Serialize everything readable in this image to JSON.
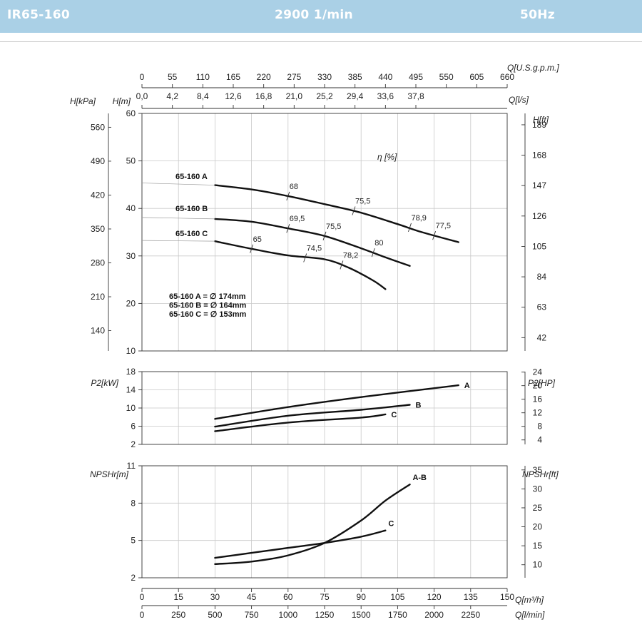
{
  "header": {
    "model": "IR65-160",
    "speed": "2900 1/min",
    "frequency": "50Hz"
  },
  "chart_data": [
    {
      "type": "line",
      "panel": "head",
      "x_unit": "Q[m³/h]",
      "xlim": [
        0,
        150
      ],
      "ylim": [
        10,
        60
      ],
      "y_ticks": [
        "10",
        "20",
        "30",
        "40",
        "50",
        "60"
      ],
      "ylabel": "H[m]",
      "ylabel_kpa": "H[kPa]",
      "kpa_ticks": [
        "140",
        "210",
        "280",
        "350",
        "420",
        "490",
        "560"
      ],
      "ylabel_ft": "H[ft]",
      "ft_ticks": [
        "42",
        "63",
        "84",
        "105",
        "126",
        "147",
        "168",
        "189"
      ],
      "top_axis_usgpm": {
        "label": "Q[U.S.g.p.m.]",
        "ticks": [
          "0",
          "55",
          "110",
          "165",
          "220",
          "275",
          "330",
          "385",
          "440",
          "495",
          "550",
          "605",
          "660"
        ]
      },
      "top_axis_ls": {
        "label": "Q[l/s]",
        "ticks": [
          "0,0",
          "4,2",
          "8,4",
          "12,6",
          "16,8",
          "21,0",
          "25,2",
          "29,4",
          "33,6",
          "37,8"
        ]
      },
      "efficiency_label": "η [%]",
      "series": [
        {
          "name": "65-160 A",
          "x": [
            30,
            45,
            60,
            75,
            90,
            105,
            115,
            130
          ],
          "y": [
            44.9,
            44.0,
            42.6,
            40.9,
            39.1,
            36.7,
            35.0,
            32.9
          ]
        },
        {
          "name": "65-160 B",
          "x": [
            30,
            45,
            60,
            75,
            90,
            100,
            110
          ],
          "y": [
            37.8,
            37.2,
            35.8,
            34.2,
            31.6,
            29.7,
            27.9
          ]
        },
        {
          "name": "65-160 C",
          "x": [
            30,
            45,
            60,
            75,
            85,
            95,
            100
          ],
          "y": [
            33.1,
            31.5,
            30.1,
            29.3,
            27.5,
            24.8,
            23.0
          ]
        }
      ],
      "efficiency_marks": [
        {
          "x": 60,
          "y": 42.6,
          "label": "68"
        },
        {
          "x": 87,
          "y": 39.5,
          "label": "75,5"
        },
        {
          "x": 110,
          "y": 36.0,
          "label": "78,9"
        },
        {
          "x": 120,
          "y": 34.3,
          "label": "77,5"
        },
        {
          "x": 60,
          "y": 35.8,
          "label": "69,5"
        },
        {
          "x": 75,
          "y": 34.2,
          "label": "75,5"
        },
        {
          "x": 95,
          "y": 30.7,
          "label": "80"
        },
        {
          "x": 45,
          "y": 31.5,
          "label": "65"
        },
        {
          "x": 67,
          "y": 29.6,
          "label": "74,5"
        },
        {
          "x": 82,
          "y": 28.1,
          "label": "78,2"
        }
      ],
      "legend": [
        "65-160 A = ∅ 174mm",
        "65-160 B = ∅ 164mm",
        "65-160 C = ∅ 153mm"
      ]
    },
    {
      "type": "line",
      "panel": "power",
      "xlim": [
        0,
        150
      ],
      "ylim": [
        2,
        18
      ],
      "ylabel": "P2[kW]",
      "y_ticks": [
        "2",
        "6",
        "10",
        "14",
        "18"
      ],
      "ylabel_right": "P2[HP]",
      "right_ticks": [
        "4",
        "8",
        "12",
        "16",
        "20",
        "24"
      ],
      "series": [
        {
          "name": "A",
          "x": [
            30,
            60,
            90,
            130
          ],
          "y": [
            7.6,
            10.2,
            12.4,
            15.0
          ]
        },
        {
          "name": "B",
          "x": [
            30,
            60,
            90,
            110
          ],
          "y": [
            5.9,
            8.3,
            9.6,
            10.7
          ]
        },
        {
          "name": "C",
          "x": [
            30,
            60,
            90,
            100
          ],
          "y": [
            4.9,
            6.8,
            7.9,
            8.6
          ]
        }
      ]
    },
    {
      "type": "line",
      "panel": "npsh",
      "xlim": [
        0,
        150
      ],
      "ylim": [
        2,
        11
      ],
      "ylabel": "NPSHr[m]",
      "y_ticks": [
        "2",
        "5",
        "8",
        "11"
      ],
      "ylabel_right": "NPSHr[ft]",
      "right_ticks": [
        "10",
        "15",
        "20",
        "25",
        "30",
        "35"
      ],
      "series": [
        {
          "name": "A-B",
          "x": [
            30,
            45,
            60,
            75,
            90,
            100,
            110
          ],
          "y": [
            3.1,
            3.3,
            3.8,
            4.8,
            6.6,
            8.2,
            9.5
          ]
        },
        {
          "name": "C",
          "x": [
            30,
            45,
            60,
            75,
            90,
            100
          ],
          "y": [
            3.6,
            4.0,
            4.4,
            4.8,
            5.3,
            5.8
          ]
        }
      ]
    }
  ],
  "bottom_axes": {
    "m3h": {
      "label": "Q[m³/h]",
      "ticks": [
        "0",
        "15",
        "30",
        "45",
        "60",
        "75",
        "90",
        "105",
        "120",
        "135",
        "150"
      ]
    },
    "lmin": {
      "label": "Q[l/min]",
      "ticks": [
        "0",
        "250",
        "500",
        "750",
        "1000",
        "1250",
        "1500",
        "1750",
        "2000",
        "2250"
      ]
    }
  }
}
